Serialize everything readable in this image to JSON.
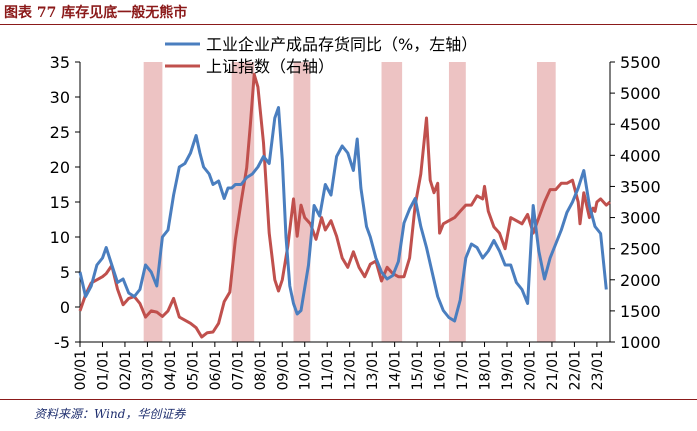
{
  "figure": {
    "title": "图表 77   库存见底一般无熊市",
    "source": "资料来源：Wind，华创证券"
  },
  "chart_data": {
    "type": "line",
    "series": [
      {
        "name": "工业企业产成品存货同比（%，左轴）",
        "axis": "left",
        "color": "#4a7ebf",
        "points": [
          [
            "2000-01",
            5
          ],
          [
            "2000-04",
            1.5
          ],
          [
            "2000-07",
            3
          ],
          [
            "2000-10",
            6
          ],
          [
            "2001-01",
            7
          ],
          [
            "2001-03",
            8.5
          ],
          [
            "2001-06",
            6
          ],
          [
            "2001-09",
            3.5
          ],
          [
            "2001-12",
            4
          ],
          [
            "2002-03",
            2
          ],
          [
            "2002-06",
            1.5
          ],
          [
            "2002-09",
            2.5
          ],
          [
            "2002-12",
            6
          ],
          [
            "2003-03",
            5
          ],
          [
            "2003-06",
            3
          ],
          [
            "2003-09",
            10
          ],
          [
            "2003-12",
            11
          ],
          [
            "2004-03",
            16
          ],
          [
            "2004-06",
            20
          ],
          [
            "2004-09",
            20.5
          ],
          [
            "2004-12",
            22
          ],
          [
            "2005-03",
            24.5
          ],
          [
            "2005-05",
            22
          ],
          [
            "2005-07",
            20
          ],
          [
            "2005-10",
            19
          ],
          [
            "2005-12",
            17.5
          ],
          [
            "2006-03",
            18
          ],
          [
            "2006-06",
            15.5
          ],
          [
            "2006-08",
            17
          ],
          [
            "2006-10",
            17
          ],
          [
            "2006-12",
            17.5
          ],
          [
            "2007-03",
            17.5
          ],
          [
            "2007-06",
            18.5
          ],
          [
            "2007-09",
            19
          ],
          [
            "2007-12",
            20
          ],
          [
            "2008-03",
            21.5
          ],
          [
            "2008-06",
            20.5
          ],
          [
            "2008-09",
            27
          ],
          [
            "2008-11",
            28.5
          ],
          [
            "2009-01",
            21
          ],
          [
            "2009-03",
            10
          ],
          [
            "2009-05",
            3
          ],
          [
            "2009-07",
            0.5
          ],
          [
            "2009-09",
            -1
          ],
          [
            "2009-11",
            -0.5
          ],
          [
            "2010-03",
            6
          ],
          [
            "2010-06",
            14.5
          ],
          [
            "2010-09",
            13
          ],
          [
            "2010-12",
            17.5
          ],
          [
            "2011-03",
            16
          ],
          [
            "2011-06",
            21.5
          ],
          [
            "2011-09",
            23
          ],
          [
            "2011-12",
            22
          ],
          [
            "2012-03",
            19.5
          ],
          [
            "2012-05",
            24
          ],
          [
            "2012-07",
            17
          ],
          [
            "2012-10",
            11.5
          ],
          [
            "2012-12",
            10
          ],
          [
            "2013-03",
            7
          ],
          [
            "2013-06",
            5
          ],
          [
            "2013-09",
            4
          ],
          [
            "2013-12",
            4.5
          ],
          [
            "2014-03",
            6.5
          ],
          [
            "2014-06",
            12
          ],
          [
            "2014-09",
            14
          ],
          [
            "2014-12",
            15.5
          ],
          [
            "2015-03",
            11.5
          ],
          [
            "2015-06",
            8.5
          ],
          [
            "2015-09",
            5
          ],
          [
            "2015-12",
            1.5
          ],
          [
            "2016-03",
            -0.5
          ],
          [
            "2016-06",
            -1.5
          ],
          [
            "2016-09",
            -2
          ],
          [
            "2016-12",
            1
          ],
          [
            "2017-03",
            7
          ],
          [
            "2017-06",
            9
          ],
          [
            "2017-09",
            8.5
          ],
          [
            "2017-12",
            7
          ],
          [
            "2018-03",
            8
          ],
          [
            "2018-06",
            9.5
          ],
          [
            "2018-09",
            8
          ],
          [
            "2018-12",
            6
          ],
          [
            "2019-03",
            6
          ],
          [
            "2019-06",
            3.5
          ],
          [
            "2019-09",
            2.5
          ],
          [
            "2019-12",
            0.5
          ],
          [
            "2020-03",
            14.5
          ],
          [
            "2020-06",
            8
          ],
          [
            "2020-09",
            4
          ],
          [
            "2020-12",
            7
          ],
          [
            "2021-03",
            9
          ],
          [
            "2021-06",
            11
          ],
          [
            "2021-09",
            13.5
          ],
          [
            "2021-12",
            15
          ],
          [
            "2022-03",
            17
          ],
          [
            "2022-06",
            19.5
          ],
          [
            "2022-09",
            14.5
          ],
          [
            "2022-12",
            11.5
          ],
          [
            "2023-03",
            10.5
          ],
          [
            "2023-06",
            2.5
          ]
        ]
      },
      {
        "name": "上证指数（右轴）",
        "axis": "right",
        "color": "#c0504d",
        "points": [
          [
            "2000-01",
            1500
          ],
          [
            "2000-04",
            1760
          ],
          [
            "2000-07",
            1950
          ],
          [
            "2000-10",
            2000
          ],
          [
            "2001-01",
            2050
          ],
          [
            "2001-03",
            2100
          ],
          [
            "2001-06",
            2230
          ],
          [
            "2001-09",
            1850
          ],
          [
            "2001-12",
            1600
          ],
          [
            "2002-03",
            1700
          ],
          [
            "2002-06",
            1730
          ],
          [
            "2002-09",
            1620
          ],
          [
            "2002-12",
            1400
          ],
          [
            "2003-03",
            1500
          ],
          [
            "2003-06",
            1480
          ],
          [
            "2003-09",
            1410
          ],
          [
            "2003-12",
            1500
          ],
          [
            "2004-03",
            1700
          ],
          [
            "2004-06",
            1400
          ],
          [
            "2004-09",
            1350
          ],
          [
            "2004-12",
            1300
          ],
          [
            "2005-03",
            1230
          ],
          [
            "2005-06",
            1080
          ],
          [
            "2005-09",
            1150
          ],
          [
            "2005-12",
            1160
          ],
          [
            "2006-03",
            1300
          ],
          [
            "2006-06",
            1650
          ],
          [
            "2006-09",
            1800
          ],
          [
            "2006-12",
            2650
          ],
          [
            "2007-03",
            3250
          ],
          [
            "2007-06",
            3800
          ],
          [
            "2007-08",
            4500
          ],
          [
            "2007-10",
            5300
          ],
          [
            "2007-12",
            5100
          ],
          [
            "2008-03",
            4200
          ],
          [
            "2008-06",
            2750
          ],
          [
            "2008-09",
            2000
          ],
          [
            "2008-11",
            1820
          ],
          [
            "2009-01",
            2000
          ],
          [
            "2009-04",
            2550
          ],
          [
            "2009-07",
            3300
          ],
          [
            "2009-09",
            2700
          ],
          [
            "2009-11",
            3200
          ],
          [
            "2010-01",
            3000
          ],
          [
            "2010-04",
            2900
          ],
          [
            "2010-07",
            2650
          ],
          [
            "2010-10",
            3000
          ],
          [
            "2010-12",
            2800
          ],
          [
            "2011-03",
            2950
          ],
          [
            "2011-06",
            2700
          ],
          [
            "2011-09",
            2350
          ],
          [
            "2011-12",
            2200
          ],
          [
            "2012-03",
            2450
          ],
          [
            "2012-06",
            2200
          ],
          [
            "2012-09",
            2050
          ],
          [
            "2012-12",
            2250
          ],
          [
            "2013-03",
            2300
          ],
          [
            "2013-06",
            1980
          ],
          [
            "2013-09",
            2200
          ],
          [
            "2013-12",
            2100
          ],
          [
            "2014-03",
            2050
          ],
          [
            "2014-06",
            2050
          ],
          [
            "2014-09",
            2350
          ],
          [
            "2014-12",
            3200
          ],
          [
            "2015-03",
            3700
          ],
          [
            "2015-06",
            4600
          ],
          [
            "2015-08",
            3600
          ],
          [
            "2015-10",
            3400
          ],
          [
            "2015-12",
            3550
          ],
          [
            "2016-01",
            2750
          ],
          [
            "2016-03",
            2900
          ],
          [
            "2016-06",
            2950
          ],
          [
            "2016-09",
            3000
          ],
          [
            "2016-12",
            3100
          ],
          [
            "2017-03",
            3200
          ],
          [
            "2017-06",
            3200
          ],
          [
            "2017-09",
            3350
          ],
          [
            "2017-12",
            3300
          ],
          [
            "2018-01",
            3500
          ],
          [
            "2018-03",
            3100
          ],
          [
            "2018-06",
            2850
          ],
          [
            "2018-09",
            2750
          ],
          [
            "2018-12",
            2500
          ],
          [
            "2019-03",
            3000
          ],
          [
            "2019-06",
            2950
          ],
          [
            "2019-09",
            2900
          ],
          [
            "2019-12",
            3050
          ],
          [
            "2020-03",
            2750
          ],
          [
            "2020-06",
            3000
          ],
          [
            "2020-09",
            3250
          ],
          [
            "2020-12",
            3450
          ],
          [
            "2021-03",
            3450
          ],
          [
            "2021-06",
            3550
          ],
          [
            "2021-09",
            3550
          ],
          [
            "2021-12",
            3600
          ],
          [
            "2022-03",
            3250
          ],
          [
            "2022-04",
            2900
          ],
          [
            "2022-06",
            3400
          ],
          [
            "2022-09",
            3000
          ],
          [
            "2022-11",
            3150
          ],
          [
            "2022-12",
            3100
          ],
          [
            "2023-01",
            3250
          ],
          [
            "2023-03",
            3300
          ],
          [
            "2023-06",
            3200
          ],
          [
            "2023-08",
            3250
          ]
        ]
      }
    ],
    "highlight_periods": [
      [
        "2002-11",
        "2003-09"
      ],
      [
        "2006-10",
        "2007-10"
      ],
      [
        "2009-07",
        "2010-04"
      ],
      [
        "2013-06",
        "2014-05"
      ],
      [
        "2016-06",
        "2017-03"
      ],
      [
        "2020-05",
        "2021-03"
      ]
    ],
    "highlight_color": "#e8b4b4",
    "y_left": {
      "ticks": [
        35,
        30,
        25,
        20,
        15,
        10,
        5,
        0,
        -5
      ],
      "ylim": [
        -5,
        35
      ]
    },
    "y_right": {
      "ticks": [
        5500,
        5000,
        4500,
        4000,
        3500,
        3000,
        2500,
        2000,
        1500,
        1000
      ],
      "ylim": [
        1000,
        5500
      ]
    },
    "x_ticks": [
      "00/01",
      "01/01",
      "02/01",
      "03/01",
      "04/01",
      "05/01",
      "06/01",
      "07/01",
      "08/01",
      "09/01",
      "10/01",
      "11/01",
      "12/01",
      "13/01",
      "14/01",
      "15/01",
      "16/01",
      "17/01",
      "18/01",
      "19/01",
      "20/01",
      "21/01",
      "22/01",
      "23/01"
    ],
    "xlim": [
      "2000-01",
      "2023-08"
    ],
    "legend": {
      "position": "top"
    },
    "grid": false
  }
}
